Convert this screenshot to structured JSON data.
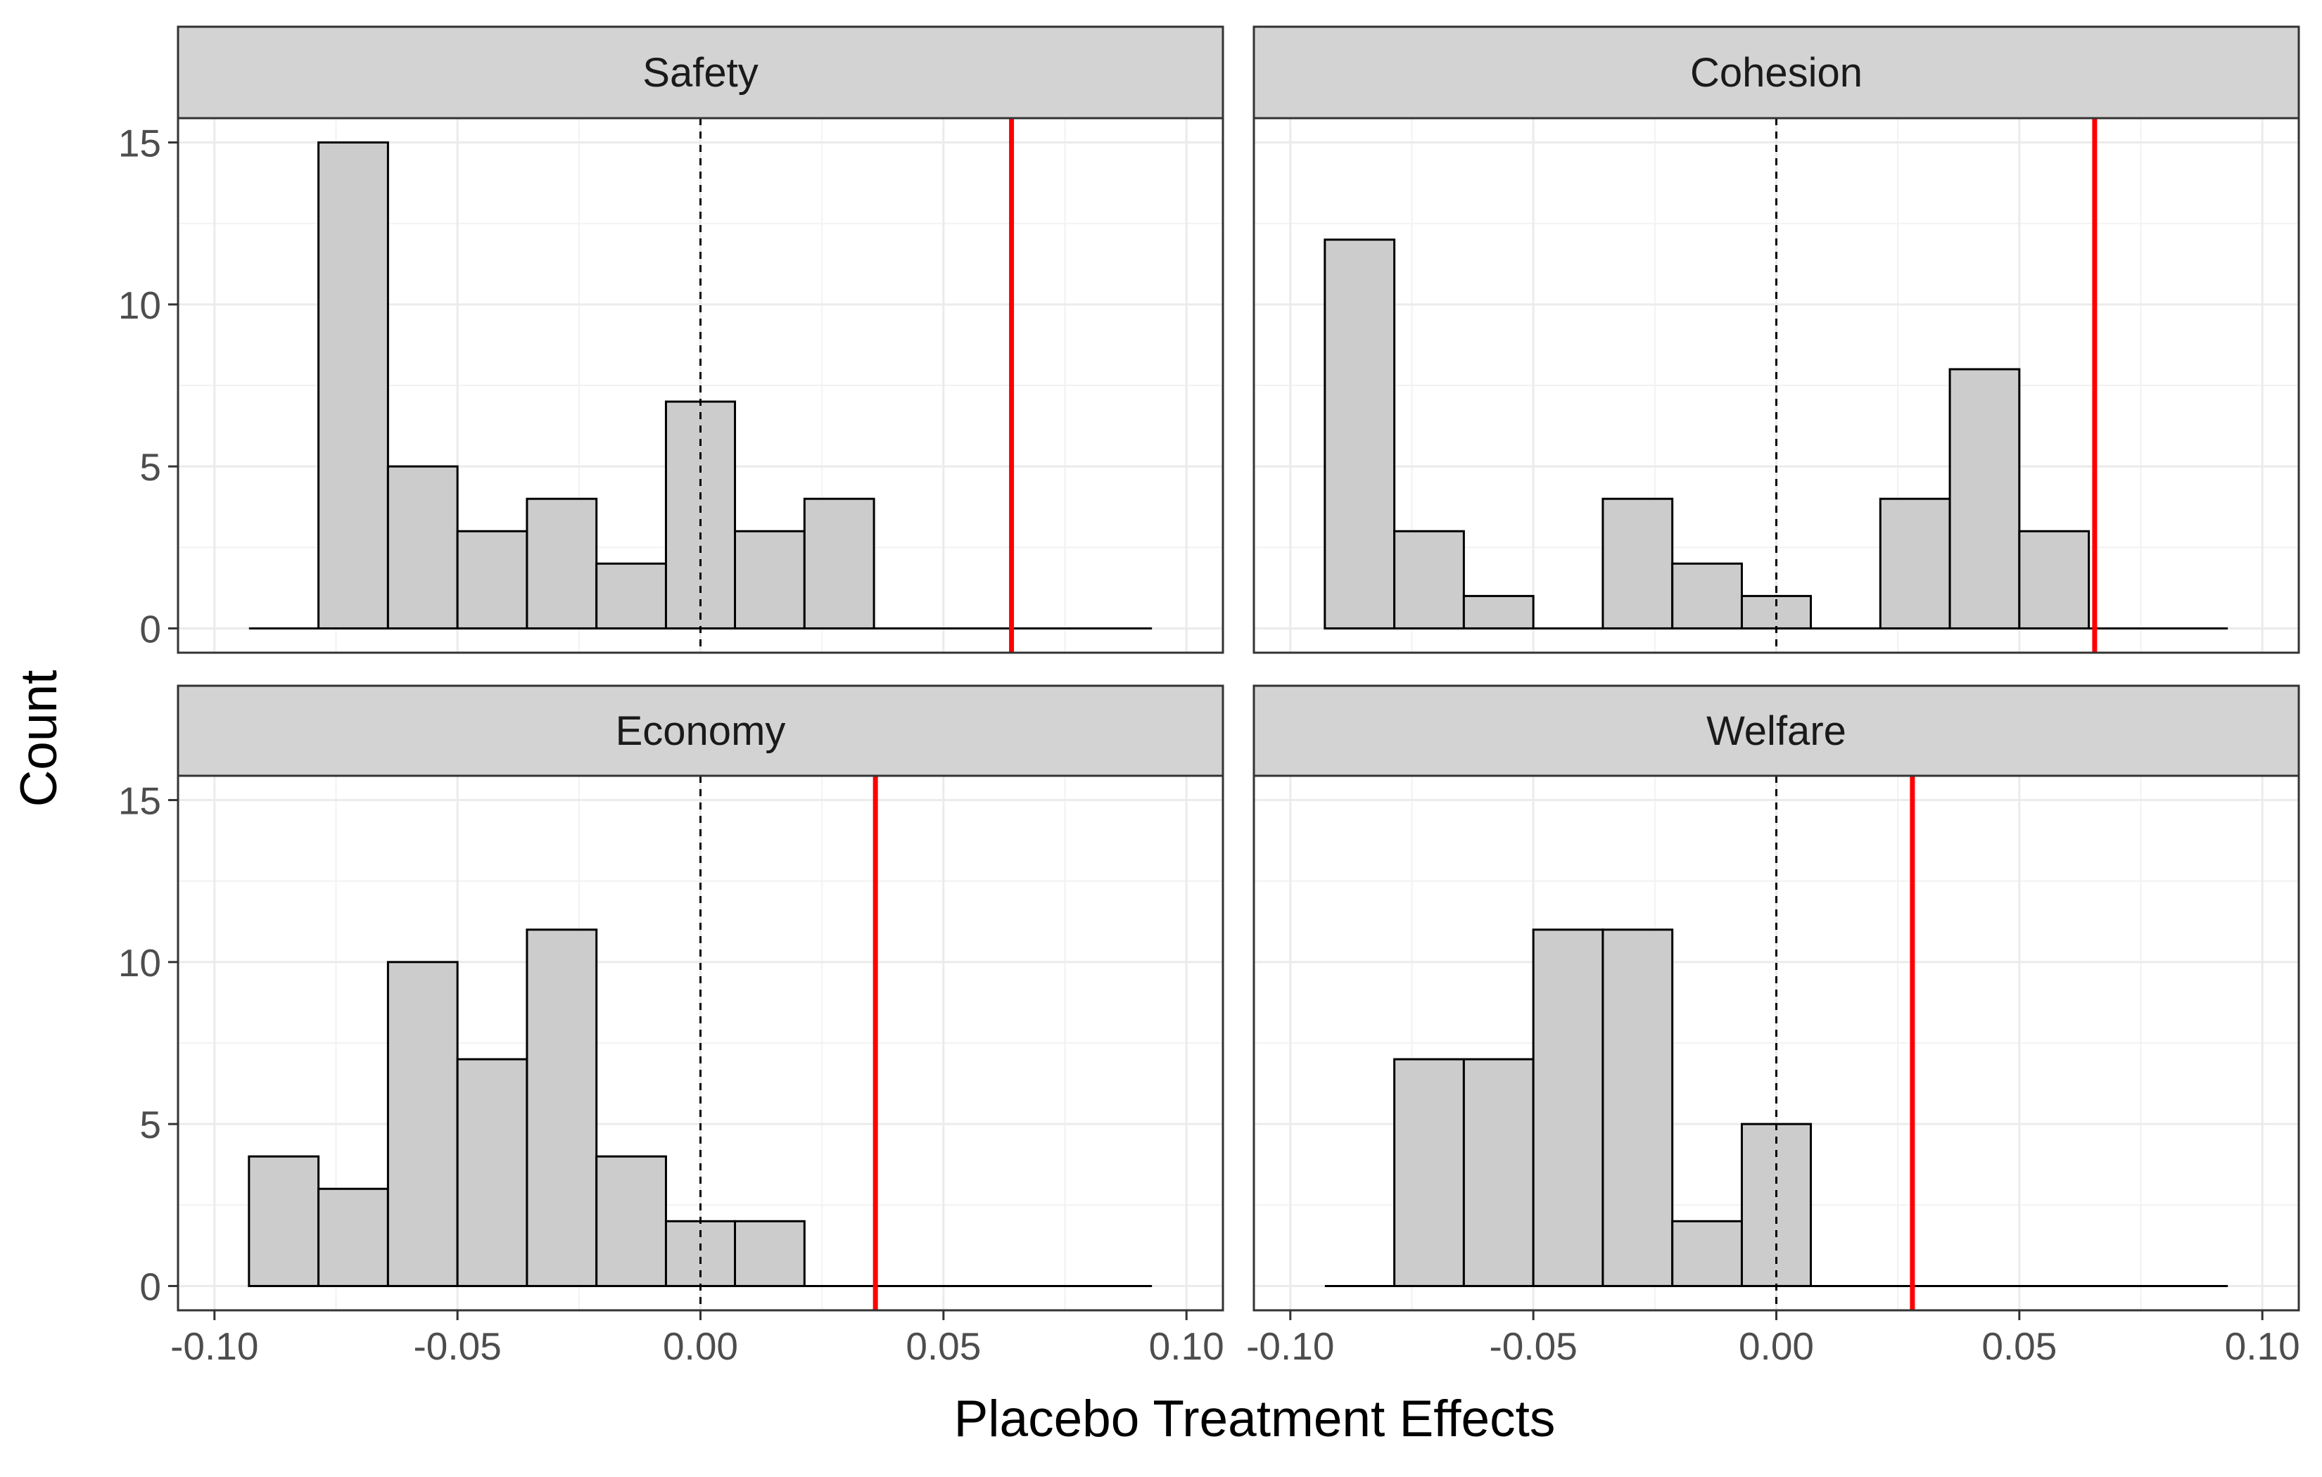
{
  "chart_data": {
    "type": "bar",
    "subtype": "faceted-histogram",
    "xlabel": "Placebo Treatment Effects",
    "ylabel": "Count",
    "xlim": [
      -0.1,
      0.1
    ],
    "ylim": [
      0,
      15
    ],
    "x_ticks": [
      "-0.10",
      "-0.05",
      "0.00",
      "0.05",
      "0.10"
    ],
    "x_tick_values": [
      -0.1,
      -0.05,
      0.0,
      0.05,
      0.1
    ],
    "y_ticks": [
      "0",
      "5",
      "10",
      "15"
    ],
    "y_tick_values": [
      0,
      5,
      10,
      15
    ],
    "grid": true,
    "bin_edges": [
      -0.0929,
      -0.0786,
      -0.0643,
      -0.05,
      -0.0357,
      -0.0214,
      -0.0071,
      0.0071,
      0.0214,
      0.0357,
      0.05,
      0.0643,
      0.0786,
      0.0929
    ],
    "reference_line": {
      "x": 0.0,
      "style": "dashed",
      "color": "#000000"
    },
    "bar_fill": "#cccccc",
    "bar_stroke": "#000000",
    "strip_fill": "#d3d3d3",
    "observed_line_color": "#ff0000",
    "panels": [
      {
        "name": "Safety",
        "counts": [
          0,
          15,
          5,
          3,
          4,
          2,
          7,
          3,
          4,
          0,
          0,
          0,
          0
        ],
        "observed_effect": 0.064
      },
      {
        "name": "Cohesion",
        "counts": [
          12,
          3,
          1,
          0,
          4,
          2,
          1,
          0,
          4,
          8,
          3,
          0,
          0
        ],
        "observed_effect": 0.0655
      },
      {
        "name": "Economy",
        "counts": [
          4,
          3,
          10,
          7,
          11,
          4,
          2,
          2,
          0,
          0,
          0,
          0,
          0
        ],
        "observed_effect": 0.036
      },
      {
        "name": "Welfare",
        "counts": [
          0,
          7,
          7,
          11,
          11,
          2,
          5,
          0,
          0,
          0,
          0,
          0,
          0
        ],
        "observed_effect": 0.028
      }
    ]
  }
}
